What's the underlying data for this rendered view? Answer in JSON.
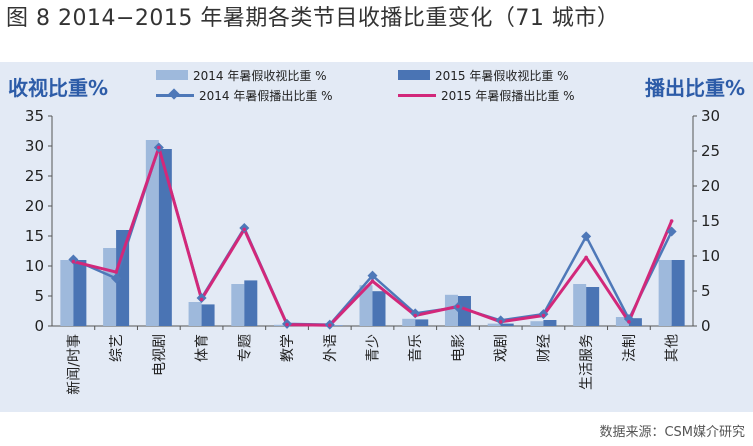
{
  "figure": {
    "title": "图 8 2014−2015 年暑期各类节目收播比重变化（71 城市）",
    "left_axis_heading": "收视比重%",
    "right_axis_heading": "播出比重%",
    "source": "数据来源：CSM媒介研究"
  },
  "colors": {
    "bar2014": "#9eb9dc",
    "bar2015": "#4a74b4",
    "line2014": "#4e78b8",
    "line2015": "#d2287a",
    "panel": "#e3eaf5",
    "heading": "#2d5ca8"
  },
  "chart_data": {
    "type": "bar",
    "title": "图 8 2014−2015 年暑期各类节目收播比重变化（71 城市）",
    "ylabel": "收视比重%",
    "y2label": "播出比重%",
    "ylim": [
      0,
      35
    ],
    "y2lim": [
      0,
      30
    ],
    "yticks": [
      0,
      5,
      10,
      15,
      20,
      25,
      30,
      35
    ],
    "y2ticks": [
      0,
      5,
      10,
      15,
      20,
      25,
      30
    ],
    "grid": false,
    "legend_position": "top",
    "categories": [
      "新闻/时事",
      "综艺",
      "电视剧",
      "体育",
      "专题",
      "教学",
      "外语",
      "青少",
      "音乐",
      "电影",
      "戏剧",
      "财经",
      "生活服务",
      "法制",
      "其他"
    ],
    "series": [
      {
        "name": "2014 年暑假收视比重 %",
        "type": "bar",
        "axis": "left",
        "values": [
          11,
          13,
          31,
          4,
          7,
          0.2,
          0.1,
          6.8,
          1.2,
          5.2,
          0.4,
          0.8,
          7,
          1.5,
          11
        ]
      },
      {
        "name": "2015 年暑假收视比重 %",
        "type": "bar",
        "axis": "left",
        "values": [
          11,
          16,
          29.5,
          3.6,
          7.6,
          0.2,
          0.1,
          5.8,
          1.1,
          5,
          0.4,
          1,
          6.5,
          1.3,
          11
        ]
      },
      {
        "name": "2014 年暑假播出比重 %",
        "type": "line",
        "axis": "right",
        "values": [
          9.5,
          6.8,
          25.5,
          4,
          14,
          0.3,
          0.2,
          7.2,
          1.8,
          2.7,
          0.8,
          1.7,
          12.8,
          1,
          13.5
        ]
      },
      {
        "name": "2015 年暑假播出比重 %",
        "type": "line",
        "axis": "right",
        "values": [
          9.2,
          7.7,
          25.5,
          3.8,
          13.8,
          0.2,
          0.1,
          6.4,
          1.5,
          2.8,
          0.6,
          1.5,
          9.8,
          0.6,
          15
        ]
      }
    ]
  }
}
